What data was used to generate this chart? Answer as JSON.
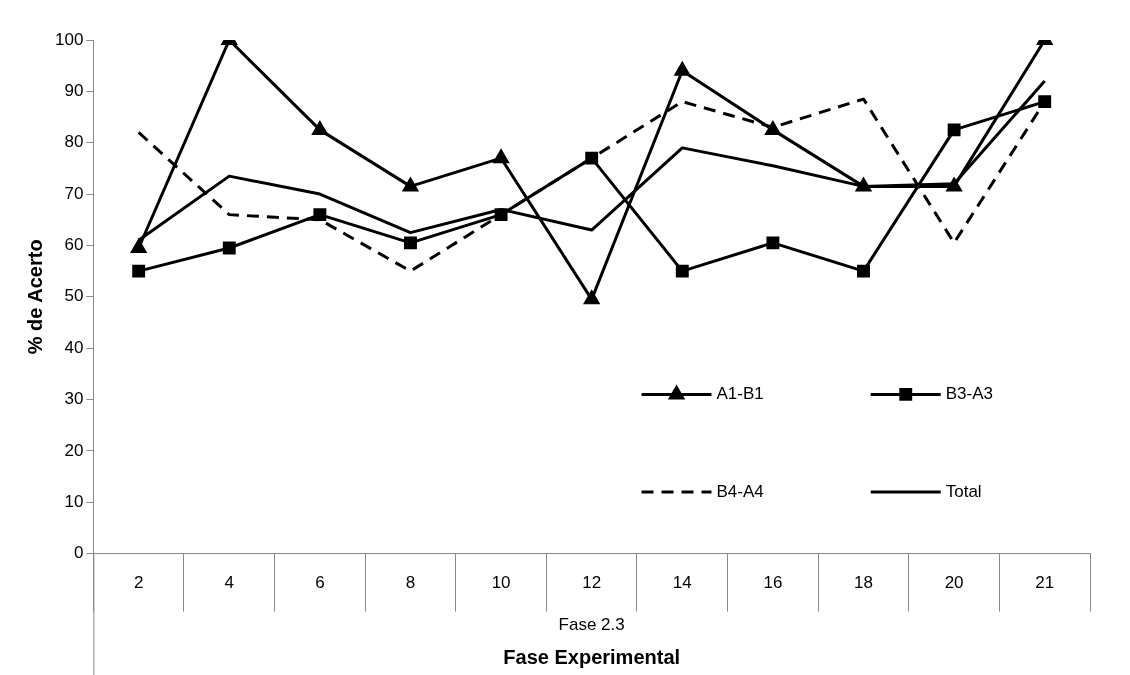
{
  "chart_data": {
    "type": "line",
    "xlabel": "Fase Experimental",
    "ylabel": "% de Acerto",
    "categories": [
      "2",
      "4",
      "6",
      "8",
      "10",
      "12",
      "14",
      "16",
      "18",
      "20",
      "21"
    ],
    "series": [
      {
        "name": "A1-B1",
        "color": "#000000",
        "marker": "triangle",
        "line_style": "solid",
        "values": [
          59.5,
          100,
          82.5,
          71.5,
          77,
          49.5,
          94,
          82.5,
          71.5,
          71.5,
          100
        ]
      },
      {
        "name": "B3-A3",
        "color": "#000000",
        "marker": "square",
        "line_style": "solid",
        "values": [
          55,
          59.5,
          66,
          60.5,
          66,
          77,
          55,
          60.5,
          55,
          82.5,
          88
        ]
      },
      {
        "name": "B4-A4",
        "color": "#000000",
        "marker": "none",
        "line_style": "dashed",
        "values": [
          82,
          66,
          65,
          55,
          66,
          77,
          88,
          83,
          88.5,
          60.5,
          88
        ]
      },
      {
        "name": "Total",
        "color": "#000000",
        "marker": "none",
        "line_style": "solid",
        "values": [
          61,
          73.5,
          70,
          62.5,
          67,
          63,
          79,
          75.5,
          71.5,
          72,
          92
        ]
      }
    ],
    "ylim": [
      0,
      100
    ],
    "yticks": [
      0,
      10,
      20,
      30,
      40,
      50,
      60,
      70,
      80,
      90,
      100
    ],
    "legend": "right",
    "annotations": [
      "Fase 2.3"
    ]
  }
}
